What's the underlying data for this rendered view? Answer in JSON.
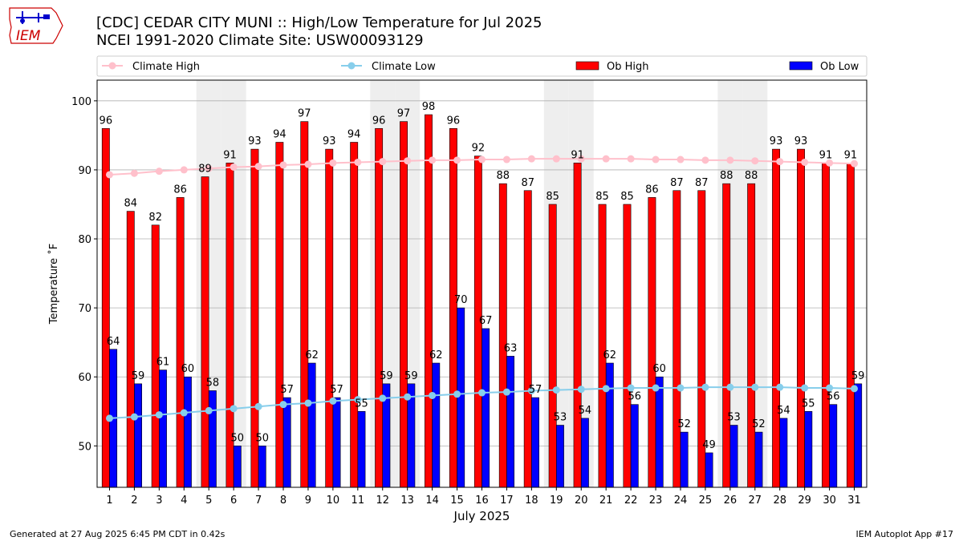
{
  "header": {
    "title": "[CDC] CEDAR CITY MUNI :: High/Low Temperature for Jul 2025",
    "subtitle": "NCEI 1991-2020 Climate Site: USW00093129",
    "logo_text": "IEM"
  },
  "footer": {
    "left": "Generated at 27 Aug 2025 6:45 PM CDT in 0.42s",
    "right": "IEM Autoplot App #17"
  },
  "colors": {
    "ob_high": "#ff0000",
    "ob_low": "#0000ff",
    "climate_high": "#ffc0cb",
    "climate_low": "#87ceeb",
    "weekend_band": "#eeeeee",
    "logo": "#cc0000"
  },
  "chart_data": {
    "type": "bar",
    "xlabel": "July 2025",
    "ylabel": "Temperature ˚F",
    "ylim": [
      44,
      103
    ],
    "yticks": [
      50,
      60,
      70,
      80,
      90,
      100
    ],
    "grid": true,
    "legend_position": "top",
    "categories": [
      "1",
      "2",
      "3",
      "4",
      "5",
      "6",
      "7",
      "8",
      "9",
      "10",
      "11",
      "12",
      "13",
      "14",
      "15",
      "16",
      "17",
      "18",
      "19",
      "20",
      "21",
      "22",
      "23",
      "24",
      "25",
      "26",
      "27",
      "28",
      "29",
      "30",
      "31"
    ],
    "weekend_days": [
      5,
      6,
      12,
      13,
      19,
      20,
      26,
      27
    ],
    "series": [
      {
        "name": "Climate High",
        "kind": "line",
        "values": [
          89.3,
          89.5,
          89.8,
          90.0,
          90.2,
          90.4,
          90.5,
          90.7,
          90.8,
          91.0,
          91.1,
          91.2,
          91.3,
          91.4,
          91.4,
          91.5,
          91.5,
          91.6,
          91.6,
          91.6,
          91.6,
          91.6,
          91.5,
          91.5,
          91.4,
          91.4,
          91.3,
          91.2,
          91.1,
          91.0,
          90.9
        ]
      },
      {
        "name": "Climate Low",
        "kind": "line",
        "values": [
          54.0,
          54.2,
          54.5,
          54.8,
          55.1,
          55.4,
          55.7,
          56.0,
          56.2,
          56.5,
          56.7,
          56.9,
          57.1,
          57.3,
          57.5,
          57.7,
          57.8,
          58.0,
          58.1,
          58.2,
          58.3,
          58.4,
          58.4,
          58.4,
          58.5,
          58.5,
          58.5,
          58.5,
          58.4,
          58.4,
          58.3
        ]
      },
      {
        "name": "Ob High",
        "kind": "bar",
        "values": [
          96,
          84,
          82,
          86,
          89,
          91,
          93,
          94,
          97,
          93,
          94,
          96,
          97,
          98,
          96,
          92,
          88,
          87,
          85,
          91,
          85,
          85,
          86,
          87,
          87,
          88,
          88,
          93,
          93,
          91,
          91
        ]
      },
      {
        "name": "Ob Low",
        "kind": "bar",
        "values": [
          64,
          59,
          61,
          60,
          58,
          50,
          50,
          57,
          62,
          57,
          55,
          59,
          59,
          62,
          70,
          67,
          63,
          57,
          53,
          54,
          62,
          56,
          60,
          52,
          49,
          53,
          52,
          54,
          55,
          56,
          59
        ]
      }
    ]
  }
}
